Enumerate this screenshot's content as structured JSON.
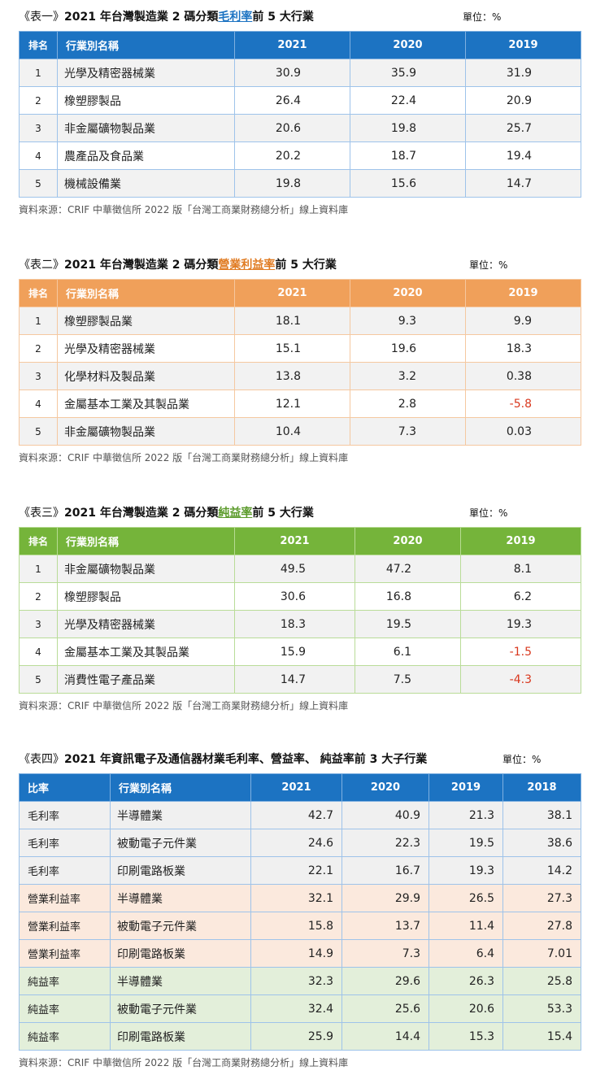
{
  "tables": [
    {
      "pre": "《表一》",
      "title_before": "2021 年台灣製造業 2 碼分類",
      "title_highlight": "毛利率",
      "title_after": "前 5 大行業",
      "highlight_color": "#1c73c2",
      "unit": "單位：%",
      "headers": [
        "排名",
        "行業別名稱",
        "2021",
        "2020",
        "2019"
      ],
      "rows": [
        [
          "1",
          "光學及精密器械業",
          "30.9",
          "35.9",
          "31.9"
        ],
        [
          "2",
          "橡塑膠製品",
          "26.4",
          "22.4",
          "20.9"
        ],
        [
          "3",
          "非金屬礦物製品業",
          "20.6",
          "19.8",
          "25.7"
        ],
        [
          "4",
          "農產品及食品業",
          "20.2",
          "18.7",
          "19.4"
        ],
        [
          "5",
          "機械設備業",
          "19.8",
          "15.6",
          "14.7"
        ]
      ],
      "source": "資料來源：CRIF 中華徵信所 2022 版「台灣工商業財務總分析」線上資料庫"
    },
    {
      "pre": "《表二》",
      "title_before": "2021 年台灣製造業 2 碼分類",
      "title_highlight": "營業利益率",
      "title_after": "前 5 大行業",
      "highlight_color": "#e07b22",
      "unit": "單位：%",
      "headers": [
        "排名",
        "行業別名稱",
        "2021",
        "2020",
        "2019"
      ],
      "rows": [
        [
          "1",
          "橡塑膠製品業",
          "18.1",
          "9.3",
          "9.9"
        ],
        [
          "2",
          "光學及精密器械業",
          "15.1",
          "19.6",
          "18.3"
        ],
        [
          "3",
          "化學材料及製品業",
          "13.8",
          "3.2",
          "0.38"
        ],
        [
          "4",
          "金屬基本工業及其製品業",
          "12.1",
          "2.8",
          "-5.8"
        ],
        [
          "5",
          "非金屬礦物製品業",
          "10.4",
          "7.3",
          "0.03"
        ]
      ],
      "source": "資料來源：CRIF 中華徵信所 2022 版「台灣工商業財務總分析」線上資料庫"
    },
    {
      "pre": "《表三》",
      "title_before": "2021 年台灣製造業 2 碼分類",
      "title_highlight": "純益率",
      "title_after": "前 5 大行業",
      "highlight_color": "#5a9a2a",
      "unit": "單位：%",
      "headers": [
        "排名",
        "行業別名稱",
        "2021",
        "2020",
        "2019"
      ],
      "rows": [
        [
          "1",
          "非金屬礦物製品業",
          "49.5",
          "47.2",
          "8.1"
        ],
        [
          "2",
          "橡塑膠製品",
          "30.6",
          "16.8",
          "6.2"
        ],
        [
          "3",
          "光學及精密器械業",
          "18.3",
          "19.5",
          "19.3"
        ],
        [
          "4",
          "金屬基本工業及其製品業",
          "15.9",
          "6.1",
          "-1.5"
        ],
        [
          "5",
          "消費性電子產品業",
          "14.7",
          "7.5",
          "-4.3"
        ]
      ],
      "source": "資料來源：CRIF 中華徵信所 2022 版「台灣工商業財務總分析」線上資料庫"
    }
  ],
  "table4": {
    "pre": "《表四》",
    "title": "2021 年資訊電子及通信器材業毛利率、營益率、 純益率前 3 大子行業",
    "unit": "單位：%",
    "headers": [
      "比率",
      "行業別名稱",
      "2021",
      "2020",
      "2019",
      "2018"
    ],
    "rows": [
      [
        "毛利率",
        "半導體業",
        "42.7",
        "40.9",
        "21.3",
        "38.1"
      ],
      [
        "毛利率",
        "被動電子元件業",
        "24.6",
        "22.3",
        "19.5",
        "38.6"
      ],
      [
        "毛利率",
        "印刷電路板業",
        "22.1",
        "16.7",
        "19.3",
        "14.2"
      ],
      [
        "營業利益率",
        "半導體業",
        "32.1",
        "29.9",
        "26.5",
        "27.3"
      ],
      [
        "營業利益率",
        "被動電子元件業",
        "15.8",
        "13.7",
        "11.4",
        "27.8"
      ],
      [
        "營業利益率",
        "印刷電路板業",
        "14.9",
        "7.3",
        "6.4",
        "7.01"
      ],
      [
        "純益率",
        "半導體業",
        "32.3",
        "29.6",
        "26.3",
        "25.8"
      ],
      [
        "純益率",
        "被動電子元件業",
        "32.4",
        "25.6",
        "20.6",
        "53.3"
      ],
      [
        "純益率",
        "印刷電路板業",
        "25.9",
        "14.4",
        "15.3",
        "15.4"
      ]
    ],
    "source": "資料來源：CRIF 中華徵信所 2022 版「台灣工商業財務總分析」線上資料庫"
  }
}
